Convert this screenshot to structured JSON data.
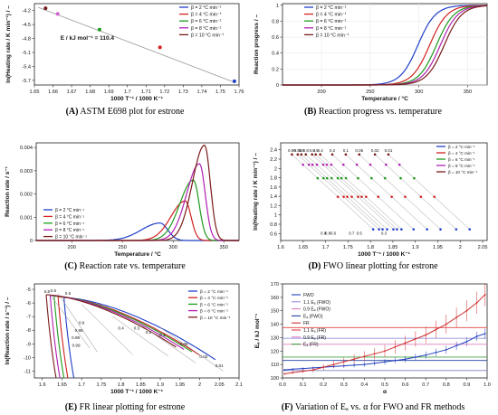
{
  "captions": [
    {
      "letter": "(A)",
      "text": "ASTM E698 plot for estrone"
    },
    {
      "letter": "(B)",
      "text": "Reaction progress vs. temperature"
    },
    {
      "letter": "(C)",
      "text": "Reaction rate vs. temperature"
    },
    {
      "letter": "(D)",
      "text": "FWO linear plotting for estrone"
    },
    {
      "letter": "(E)",
      "text": "FR linear plotting for estrone"
    },
    {
      "letter": "(F)",
      "text": "Variation of Eₐ vs. α for FWO and FR methods"
    }
  ],
  "colors": {
    "b2": "#1f3fc8",
    "b4": "#d22020",
    "b6": "#1f9a1f",
    "b8": "#b020b0",
    "b10": "#7a1a1a",
    "pink": "#d060d0"
  },
  "beta_legend": [
    "β =  2 °C min⁻¹",
    "β =  4 °C min⁻¹",
    "β =  6 °C min⁻¹",
    "β =  8 °C min⁻¹",
    "β = 10 °C min⁻¹"
  ],
  "chart_data": [
    {
      "id": "A",
      "type": "scatter",
      "title": "",
      "xlabel": "1000 T⁻¹ / 1000 K⁻¹",
      "ylabel": "ln(Heating rate / K min⁻¹) / –",
      "xlim": [
        1.65,
        1.76
      ],
      "ylim": [
        -5.8,
        -4.05
      ],
      "xticks": [
        1.65,
        1.66,
        1.67,
        1.68,
        1.69,
        1.7,
        1.71,
        1.72,
        1.73,
        1.74,
        1.75,
        1.76
      ],
      "xtick_labels": [
        "1.65",
        "1.66",
        "1.67",
        "1.68",
        "1.69",
        "1.7",
        "1.71",
        "1.72",
        "1.73",
        "1.74",
        "1.75",
        "1.76"
      ],
      "yticks": [
        -4.2,
        -4.5,
        -4.8,
        -5.1,
        -5.4,
        -5.7
      ],
      "ytick_labels": [
        "-4.2",
        "-4.5",
        "-4.8",
        "-5.1",
        "-5.4",
        "-5.7"
      ],
      "annotation": "E / kJ mol⁻¹ = 110.4",
      "points": [
        {
          "x": 1.7575,
          "y": -5.72,
          "c": "b2"
        },
        {
          "x": 1.7175,
          "y": -4.99,
          "c": "b4"
        },
        {
          "x": 1.685,
          "y": -4.61,
          "c": "b6"
        },
        {
          "x": 1.6625,
          "y": -4.27,
          "c": "pink"
        },
        {
          "x": 1.656,
          "y": -4.15,
          "c": "b10"
        }
      ],
      "fit": [
        [
          1.652,
          -4.13
        ],
        [
          1.758,
          -5.75
        ]
      ]
    },
    {
      "id": "B",
      "type": "line",
      "title": "",
      "xlabel": "Temperature / °C",
      "ylabel": "Reaction progress / –",
      "xlim": [
        160,
        370
      ],
      "ylim": [
        0,
        1.02
      ],
      "xticks": [
        200,
        250,
        300,
        350
      ],
      "xtick_labels": [
        "200",
        "250",
        "300",
        "350"
      ],
      "yticks": [
        0,
        0.2,
        0.4,
        0.6,
        0.8,
        1
      ],
      "ytick_labels": [
        "0",
        "0.2",
        "0.4",
        "0.6",
        "0.8",
        "1"
      ],
      "series": [
        {
          "c": "b2",
          "mid": 299,
          "w": 9
        },
        {
          "c": "b4",
          "mid": 311,
          "w": 9
        },
        {
          "c": "b6",
          "mid": 318,
          "w": 9
        },
        {
          "c": "b8",
          "mid": 322,
          "w": 9
        },
        {
          "c": "b10",
          "mid": 326,
          "w": 9
        }
      ]
    },
    {
      "id": "C",
      "type": "line",
      "title": "",
      "xlabel": "Temperature / °C",
      "ylabel": "Reaction rate / s⁻¹",
      "xlim": [
        165,
        365
      ],
      "ylim": [
        0,
        0.0042
      ],
      "xticks": [
        200,
        250,
        300,
        350
      ],
      "xtick_labels": [
        "200",
        "250",
        "300",
        "350"
      ],
      "yticks": [
        0,
        0.001,
        0.002,
        0.003,
        0.004
      ],
      "ytick_labels": [
        "0",
        "0.001",
        "0.002",
        "0.003",
        "0.004"
      ],
      "series": [
        {
          "c": "b2",
          "peak": 287,
          "h": 0.00075,
          "wl": 26,
          "wr": 11
        },
        {
          "c": "b4",
          "peak": 312,
          "h": 0.0017,
          "wl": 20,
          "wr": 8
        },
        {
          "c": "b6",
          "peak": 320,
          "h": 0.0026,
          "wl": 19,
          "wr": 8
        },
        {
          "c": "b8",
          "peak": 326,
          "h": 0.0033,
          "wl": 18,
          "wr": 8
        },
        {
          "c": "b10",
          "peak": 331,
          "h": 0.0041,
          "wl": 17,
          "wr": 8
        }
      ]
    },
    {
      "id": "D",
      "type": "scatter",
      "title": "",
      "xlabel": "1000 T⁻¹ / 1000 K⁻¹",
      "ylabel": "ln(Heating rate / K min⁻¹) / –",
      "xlim": [
        1.6,
        2.06
      ],
      "ylim": [
        0.45,
        2.55
      ],
      "xticks": [
        1.6,
        1.65,
        1.7,
        1.75,
        1.8,
        1.85,
        1.9,
        1.95,
        2,
        2.05
      ],
      "xtick_labels": [
        "1.6",
        "1.65",
        "1.7",
        "1.75",
        "1.8",
        "1.85",
        "1.9",
        "1.95",
        "2",
        "2.05"
      ],
      "yticks": [
        0.6,
        0.8,
        1,
        1.2,
        1.4,
        1.6,
        1.8,
        2,
        2.2,
        2.4
      ],
      "ytick_labels": [
        "0.6",
        "0.8",
        "1",
        "1.2",
        "1.4",
        "1.6",
        "1.8",
        "2",
        "2.2",
        "2.4"
      ],
      "levels": [
        {
          "y": 0.69,
          "c": "b2"
        },
        {
          "y": 1.39,
          "c": "b4"
        },
        {
          "y": 1.79,
          "c": "b6"
        },
        {
          "y": 2.08,
          "c": "b8"
        },
        {
          "y": 2.3,
          "c": "b10"
        }
      ],
      "alpha_top": [
        {
          "label": "0.99",
          "x": 1.625
        },
        {
          "label": "0.95",
          "x": 1.638
        },
        {
          "label": "0.9",
          "x": 1.646
        },
        {
          "label": "0.8",
          "x": 1.656
        },
        {
          "label": "0.6",
          "x": 1.67
        },
        {
          "label": "0.5",
          "x": 1.678
        },
        {
          "label": "0.4",
          "x": 1.688
        },
        {
          "label": "0.2",
          "x": 1.715
        },
        {
          "label": "0.1",
          "x": 1.745
        },
        {
          "label": "0.05",
          "x": 1.775
        },
        {
          "label": "0.02",
          "x": 1.81
        },
        {
          "label": "0.01",
          "x": 1.84
        }
      ],
      "bottom_labels": [
        {
          "label": "0.9",
          "x": 1.695
        },
        {
          "label": "0.8",
          "x": 1.705
        },
        {
          "label": "0.6",
          "x": 1.717
        },
        {
          "label": "0.7",
          "x": 1.758
        },
        {
          "label": "0.5",
          "x": 1.775
        },
        {
          "label": "0.3",
          "x": 1.83
        }
      ],
      "dx_per_level": 0.045
    },
    {
      "id": "E",
      "type": "line",
      "title": "",
      "xlabel": "1000 T⁻¹ / 1000 K⁻¹",
      "ylabel": "ln(Reaction rate / s⁻¹) / –",
      "xlim": [
        1.58,
        2.1
      ],
      "ylim": [
        -11.5,
        -4.6
      ],
      "xticks": [
        1.6,
        1.65,
        1.7,
        1.75,
        1.8,
        1.85,
        1.9,
        1.95,
        2,
        2.05,
        2.1
      ],
      "xtick_labels": [
        "1.6",
        "1.65",
        "1.7",
        "1.75",
        "1.8",
        "1.85",
        "1.9",
        "1.95",
        "2",
        "2.05",
        "2.1"
      ],
      "yticks": [
        -5,
        -6,
        -7,
        -8,
        -9,
        -10,
        -11
      ],
      "ytick_labels": [
        "-5",
        "-6",
        "-7",
        "-8",
        "-9",
        "-10",
        "-11"
      ],
      "labels": [
        {
          "t": "0.8",
          "x": 1.612,
          "y": -5.25
        },
        {
          "t": "0.6",
          "x": 1.628,
          "y": -5.2
        },
        {
          "t": "0.5",
          "x": 1.665,
          "y": -5.4
        },
        {
          "t": "0.9",
          "x": 1.7,
          "y": -7.55
        },
        {
          "t": "0.95",
          "x": 1.693,
          "y": -8.1
        },
        {
          "t": "0.98",
          "x": 1.685,
          "y": -8.65
        },
        {
          "t": "0.99",
          "x": 1.686,
          "y": -9.2
        },
        {
          "t": "0.4",
          "x": 1.8,
          "y": -7.95
        },
        {
          "t": "0.3",
          "x": 1.84,
          "y": -7.95
        },
        {
          "t": "0.2",
          "x": 1.87,
          "y": -8.25
        },
        {
          "t": "0.1",
          "x": 1.905,
          "y": -8.45
        },
        {
          "t": "0.05",
          "x": 1.96,
          "y": -9.1
        },
        {
          "t": "0.02",
          "x": 2.01,
          "y": -10.05
        },
        {
          "t": "0.01",
          "x": 2.05,
          "y": -10.7
        }
      ]
    },
    {
      "id": "F",
      "type": "line",
      "title": "",
      "xlabel": "α",
      "ylabel": "Eₐ / kJ mol⁻¹",
      "xlim": [
        0,
        1
      ],
      "ylim": [
        100,
        170
      ],
      "xticks": [
        0,
        0.1,
        0.2,
        0.3,
        0.4,
        0.5,
        0.6,
        0.7,
        0.8,
        0.9,
        1
      ],
      "xtick_labels": [
        "0.0",
        "0.1",
        "0.2",
        "0.3",
        "0.4",
        "0.5",
        "0.6",
        "0.7",
        "0.8",
        "0.9",
        "1.0"
      ],
      "yticks": [
        100,
        110,
        120,
        130,
        140,
        150,
        160,
        170
      ],
      "ytick_labels": [
        "100",
        "110",
        "120",
        "130",
        "140",
        "150",
        "160",
        "170"
      ],
      "legend": [
        "FWO",
        "1.1 Eₐ (FWO)",
        "0.9 Eₐ (FWO)",
        "Eₐ (FWO)",
        "FR",
        "1.1 Eₐ (FR)",
        "0.9 Eₐ (FR)",
        "Eₐ (FR)"
      ],
      "fwo": [
        [
          0.01,
          106
        ],
        [
          0.05,
          106.5
        ],
        [
          0.1,
          107
        ],
        [
          0.15,
          107.5
        ],
        [
          0.2,
          108
        ],
        [
          0.25,
          108.5
        ],
        [
          0.3,
          109
        ],
        [
          0.35,
          109.5
        ],
        [
          0.4,
          110
        ],
        [
          0.45,
          111
        ],
        [
          0.5,
          112
        ],
        [
          0.55,
          113
        ],
        [
          0.6,
          114
        ],
        [
          0.65,
          115.5
        ],
        [
          0.7,
          117
        ],
        [
          0.75,
          119
        ],
        [
          0.8,
          121
        ],
        [
          0.85,
          124
        ],
        [
          0.9,
          127
        ],
        [
          0.95,
          131
        ],
        [
          0.99,
          133
        ]
      ],
      "fr": [
        [
          0.01,
          103
        ],
        [
          0.05,
          104
        ],
        [
          0.1,
          105
        ],
        [
          0.15,
          106
        ],
        [
          0.2,
          108
        ],
        [
          0.25,
          110
        ],
        [
          0.3,
          112
        ],
        [
          0.35,
          114
        ],
        [
          0.4,
          116
        ],
        [
          0.45,
          118
        ],
        [
          0.5,
          120
        ],
        [
          0.55,
          123
        ],
        [
          0.6,
          126
        ],
        [
          0.65,
          129
        ],
        [
          0.7,
          132
        ],
        [
          0.75,
          136
        ],
        [
          0.8,
          140
        ],
        [
          0.85,
          145
        ],
        [
          0.9,
          150
        ],
        [
          0.95,
          156
        ],
        [
          0.99,
          162
        ]
      ],
      "hlines": [
        {
          "y": 137.5,
          "c": "#e04040"
        },
        {
          "y": 129.5,
          "c": "#9090e0"
        },
        {
          "y": 125,
          "c": "#e080c0"
        },
        {
          "y": 115.5,
          "c": "#40a040"
        },
        {
          "y": 113,
          "c": "#2040a0"
        },
        {
          "y": 105.5,
          "c": "#8080c0"
        }
      ]
    }
  ]
}
